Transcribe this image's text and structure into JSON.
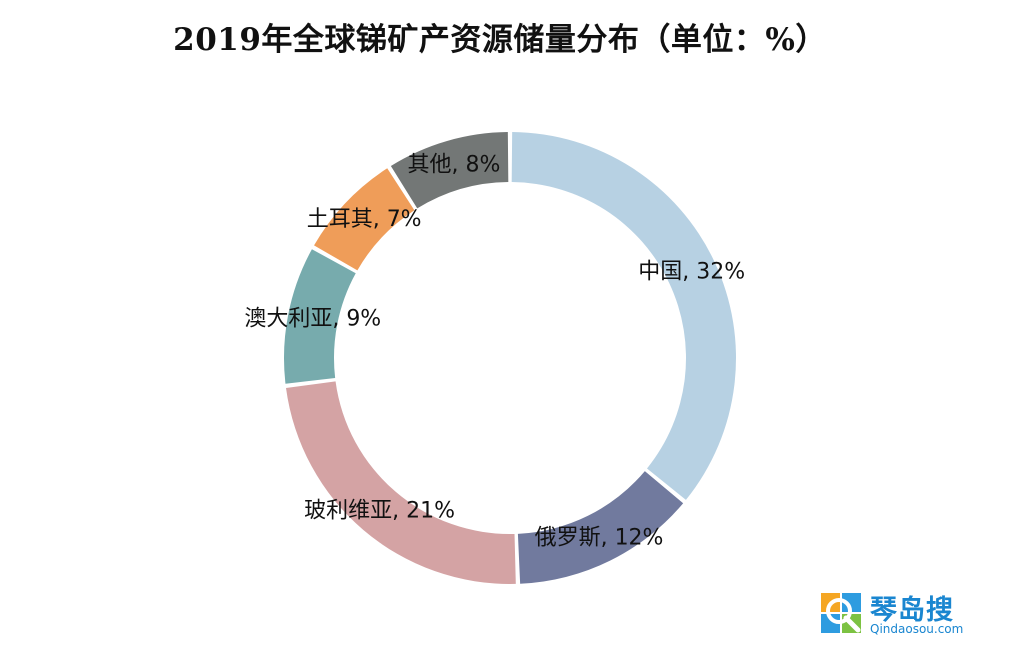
{
  "chart_data": {
    "type": "pie",
    "variant": "donut",
    "title": "2019年全球锑矿产资源储量分布（单位：%）",
    "categories": [
      "中国",
      "俄罗斯",
      "玻利维亚",
      "澳大利亚",
      "土耳其",
      "其他"
    ],
    "values": [
      32,
      12,
      21,
      9,
      7,
      8
    ],
    "labels": [
      "中国, 32%",
      "俄罗斯, 12%",
      "玻利维亚, 21%",
      "澳大利亚, 9%",
      "土耳其, 7%",
      "其他, 8%"
    ],
    "colors": [
      "#b7d1e3",
      "#717a9e",
      "#d4a3a4",
      "#77abad",
      "#ef9d59",
      "#737776"
    ],
    "start": "12 o'clock",
    "direction": "clockwise",
    "legend": "none"
  },
  "watermark": {
    "name": "琴岛搜",
    "url": "Qindaosou.com"
  }
}
